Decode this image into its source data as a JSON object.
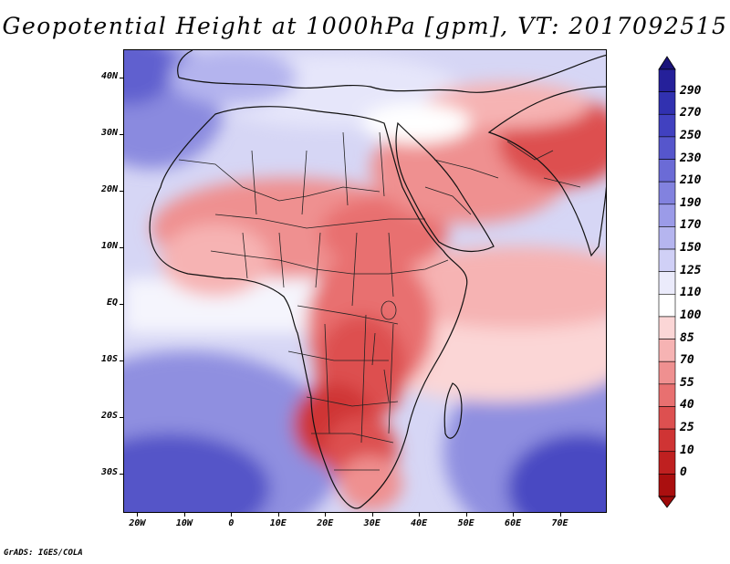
{
  "title": "Geopotential Height at 1000hPa [gpm], VT: 2017092515",
  "credit": "GrADS: IGES/COLA",
  "map": {
    "lon_range": [
      -23,
      80
    ],
    "lat_range": [
      -37,
      45
    ],
    "lat_ticks": [
      {
        "value": 40,
        "label": "40N"
      },
      {
        "value": 30,
        "label": "30N"
      },
      {
        "value": 20,
        "label": "20N"
      },
      {
        "value": 10,
        "label": "10N"
      },
      {
        "value": 0,
        "label": "EQ"
      },
      {
        "value": -10,
        "label": "10S"
      },
      {
        "value": -20,
        "label": "20S"
      },
      {
        "value": -30,
        "label": "30S"
      }
    ],
    "lon_ticks": [
      {
        "value": -20,
        "label": "20W"
      },
      {
        "value": -10,
        "label": "10W"
      },
      {
        "value": 0,
        "label": "0"
      },
      {
        "value": 10,
        "label": "10E"
      },
      {
        "value": 20,
        "label": "20E"
      },
      {
        "value": 30,
        "label": "30E"
      },
      {
        "value": 40,
        "label": "40E"
      },
      {
        "value": 50,
        "label": "50E"
      },
      {
        "value": 60,
        "label": "60E"
      },
      {
        "value": 70,
        "label": "70E"
      }
    ]
  },
  "colorbar": {
    "labels": [
      "290",
      "270",
      "250",
      "230",
      "210",
      "190",
      "170",
      "150",
      "125",
      "110",
      "100",
      "85",
      "70",
      "55",
      "40",
      "25",
      "10",
      "0"
    ],
    "colors": [
      "#25209a",
      "#3131b0",
      "#4141c0",
      "#5656cc",
      "#6b6bd6",
      "#8282df",
      "#9b9be8",
      "#b5b5ef",
      "#d0d0f6",
      "#ebebfb",
      "#ffffff",
      "#fbd6d6",
      "#f6b3b3",
      "#ef9090",
      "#e87070",
      "#dd5050",
      "#cf3434",
      "#bf2020",
      "#aa0f0f"
    ],
    "cap_top_color": "#1a137a",
    "cap_bottom_color": "#9e0a0a"
  }
}
